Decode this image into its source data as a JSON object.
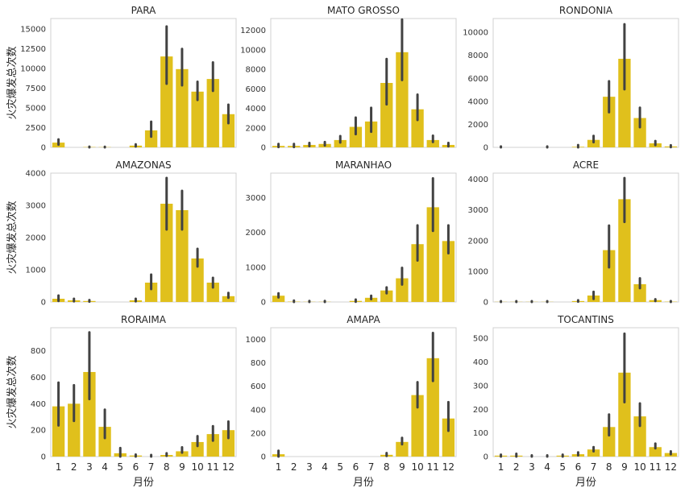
{
  "chart_data": {
    "type": "bar",
    "layout": "3x3 grid of subplots",
    "xlabel": "月份",
    "ylabel": "火灾爆发总次数",
    "categories": [
      "1",
      "2",
      "3",
      "4",
      "5",
      "6",
      "7",
      "8",
      "9",
      "10",
      "11",
      "12"
    ],
    "bar_color": "#e0c01c",
    "errorbar_color": "#424242",
    "grid": false,
    "panels": [
      {
        "title": "PARA",
        "ylim": [
          0,
          16300
        ],
        "yticks": [
          0,
          2500,
          5000,
          7500,
          10000,
          12500,
          15000
        ],
        "values": [
          600,
          0,
          40,
          30,
          0,
          220,
          2150,
          11500,
          9900,
          7050,
          8650,
          4200
        ],
        "err_low": [
          350,
          0,
          0,
          0,
          0,
          100,
          1350,
          8050,
          7850,
          6000,
          7150,
          3050
        ],
        "err_high": [
          1000,
          0,
          90,
          80,
          0,
          380,
          3250,
          15300,
          12450,
          8300,
          10750,
          5400
        ]
      },
      {
        "title": "MATO GROSSO",
        "ylim": [
          0,
          13200
        ],
        "yticks": [
          0,
          2000,
          4000,
          6000,
          8000,
          10000,
          12000
        ],
        "values": [
          150,
          150,
          250,
          350,
          750,
          2100,
          2650,
          6600,
          9750,
          3900,
          750,
          250
        ],
        "err_low": [
          30,
          30,
          120,
          200,
          500,
          1350,
          1600,
          4400,
          6900,
          2800,
          550,
          100
        ],
        "err_high": [
          350,
          350,
          450,
          550,
          1150,
          3050,
          4050,
          9050,
          13100,
          5400,
          1200,
          450
        ]
      },
      {
        "title": "RONDONIA",
        "ylim": [
          0,
          11200
        ],
        "yticks": [
          0,
          2000,
          4000,
          6000,
          8000,
          10000
        ],
        "values": [
          0,
          0,
          0,
          0,
          0,
          50,
          650,
          4400,
          7700,
          2550,
          350,
          80
        ],
        "err_low": [
          0,
          0,
          0,
          0,
          0,
          0,
          450,
          3050,
          5050,
          1750,
          200,
          20
        ],
        "err_high": [
          80,
          0,
          0,
          80,
          0,
          200,
          1000,
          5750,
          10700,
          3450,
          550,
          180
        ]
      },
      {
        "title": "AMAZONAS",
        "ylim": [
          0,
          4000
        ],
        "yticks": [
          0,
          1000,
          2000,
          3000,
          4000
        ],
        "values": [
          100,
          50,
          30,
          0,
          0,
          50,
          600,
          3050,
          2850,
          1350,
          600,
          180
        ],
        "err_low": [
          30,
          20,
          10,
          0,
          0,
          20,
          400,
          2250,
          2250,
          1100,
          450,
          130
        ],
        "err_high": [
          200,
          100,
          60,
          0,
          0,
          100,
          850,
          3850,
          3450,
          1650,
          750,
          280
        ]
      },
      {
        "title": "MARANHAO",
        "ylim": [
          0,
          3700
        ],
        "yticks": [
          0,
          1000,
          2000,
          3000
        ],
        "values": [
          180,
          10,
          5,
          5,
          0,
          30,
          120,
          330,
          680,
          1660,
          2720,
          1750
        ],
        "err_low": [
          130,
          0,
          0,
          0,
          0,
          5,
          80,
          250,
          500,
          1190,
          2040,
          1400
        ],
        "err_high": [
          250,
          40,
          30,
          30,
          0,
          70,
          180,
          420,
          980,
          2200,
          3550,
          2200
        ]
      },
      {
        "title": "ACRE",
        "ylim": [
          0,
          4200
        ],
        "yticks": [
          0,
          1000,
          2000,
          3000,
          4000
        ],
        "values": [
          5,
          5,
          5,
          5,
          0,
          30,
          210,
          1690,
          3350,
          580,
          60,
          10
        ],
        "err_low": [
          0,
          0,
          0,
          0,
          0,
          10,
          100,
          1130,
          2610,
          450,
          30,
          0
        ],
        "err_high": [
          25,
          25,
          25,
          25,
          0,
          55,
          330,
          2490,
          4040,
          770,
          90,
          30
        ]
      },
      {
        "title": "RORAIMA",
        "ylim": [
          0,
          975
        ],
        "yticks": [
          0,
          200,
          400,
          600,
          800
        ],
        "values": [
          380,
          400,
          640,
          225,
          25,
          8,
          0,
          12,
          40,
          110,
          170,
          200
        ],
        "err_low": [
          235,
          270,
          435,
          140,
          0,
          0,
          0,
          5,
          30,
          80,
          120,
          140
        ],
        "err_high": [
          560,
          540,
          940,
          355,
          65,
          15,
          12,
          25,
          70,
          155,
          230,
          265
        ]
      },
      {
        "title": "AMAPA",
        "ylim": [
          0,
          1100
        ],
        "yticks": [
          0,
          200,
          400,
          600,
          800,
          1000
        ],
        "values": [
          20,
          0,
          0,
          0,
          0,
          0,
          0,
          15,
          125,
          525,
          840,
          325
        ],
        "err_low": [
          0,
          0,
          0,
          0,
          0,
          0,
          0,
          5,
          105,
          420,
          645,
          220
        ],
        "err_high": [
          50,
          0,
          0,
          0,
          0,
          0,
          0,
          30,
          160,
          635,
          1055,
          465
        ]
      },
      {
        "title": "TOCANTINS",
        "ylim": [
          0,
          545
        ],
        "yticks": [
          0,
          100,
          200,
          300,
          400,
          500
        ],
        "values": [
          4,
          4,
          0,
          0,
          4,
          10,
          30,
          125,
          355,
          170,
          40,
          15
        ],
        "err_low": [
          0,
          0,
          0,
          0,
          0,
          5,
          22,
          90,
          230,
          130,
          35,
          10
        ],
        "err_high": [
          8,
          12,
          5,
          5,
          8,
          18,
          40,
          178,
          520,
          225,
          55,
          22
        ]
      }
    ]
  }
}
